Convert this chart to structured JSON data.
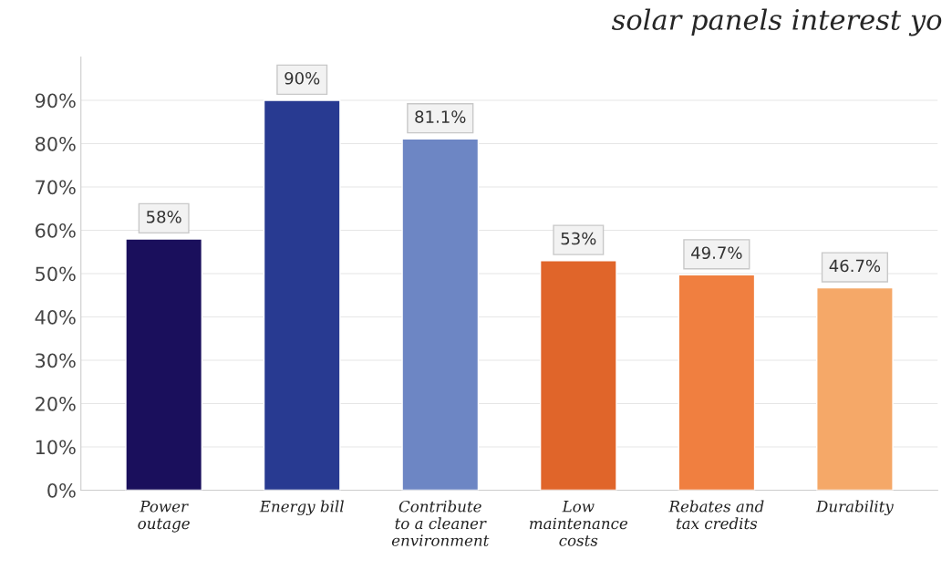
{
  "chart_data": {
    "type": "bar",
    "title": "solar panels interest yo",
    "categories": [
      "Power\noutage",
      "Energy bill",
      "Contribute\nto a cleaner\nenvironment",
      "Low\nmaintenance\ncosts",
      "Rebates and\ntax credits",
      "Durability"
    ],
    "values": [
      58,
      90,
      81.1,
      53,
      49.7,
      46.7
    ],
    "colors": [
      "#1a0f5c",
      "#283a91",
      "#6d86c4",
      "#e0652a",
      "#f07f40",
      "#f5a868"
    ],
    "value_labels": [
      "58%",
      "90%",
      "81.1%",
      "53%",
      "49.7%",
      "46.7%"
    ],
    "ylim": [
      0,
      100
    ],
    "yticks": [
      {
        "value": 0,
        "label": "0%"
      },
      {
        "value": 10,
        "label": "10%"
      },
      {
        "value": 20,
        "label": "20%"
      },
      {
        "value": 30,
        "label": "30%"
      },
      {
        "value": 40,
        "label": "40%"
      },
      {
        "value": 50,
        "label": "50%"
      },
      {
        "value": 60,
        "label": "60%"
      },
      {
        "value": 70,
        "label": "70%"
      },
      {
        "value": 80,
        "label": "80%"
      },
      {
        "value": 90,
        "label": "90%"
      }
    ],
    "grid": "y"
  }
}
